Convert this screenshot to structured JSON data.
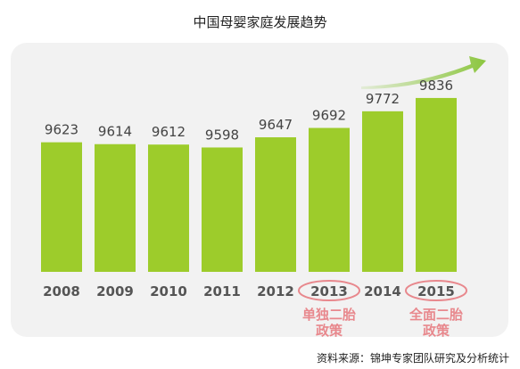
{
  "title": "中国母婴家庭发展趋势",
  "source": "资料来源：锦坤专家团队研究及分析统计",
  "colors": {
    "bar": "#9dcc2b",
    "panel": "#f2f2f2",
    "year_text": "#555555",
    "value_text": "#444444",
    "highlight": "#e8888d",
    "arrow": "#8cc63f"
  },
  "icons": {
    "trend": "arrow-up-right-icon"
  },
  "chart_data": {
    "type": "bar",
    "categories": [
      "2008",
      "2009",
      "2010",
      "2011",
      "2012",
      "2013",
      "2014",
      "2015"
    ],
    "values": [
      9623,
      9614,
      9612,
      9598,
      9647,
      9692,
      9772,
      9836
    ],
    "value_labels": [
      "9623",
      "9614",
      "9612",
      "9598",
      "9647",
      "9692",
      "9772",
      "9836"
    ],
    "ylim": [
      9000,
      10050
    ],
    "grid": false,
    "legend": "none",
    "highlighted_categories": [
      "2013",
      "2015"
    ],
    "annotations": [
      {
        "category": "2013",
        "lines": [
          "单独二胎",
          "政策"
        ]
      },
      {
        "category": "2015",
        "lines": [
          "全面二胎",
          "政策"
        ]
      }
    ]
  }
}
